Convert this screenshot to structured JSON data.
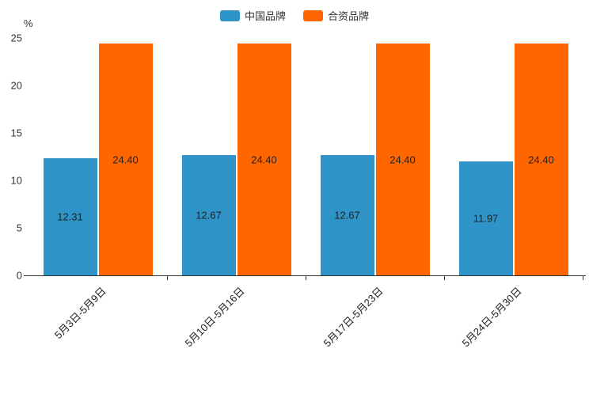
{
  "chart_data": {
    "type": "bar",
    "title": "",
    "categories": [
      "5月3日-5月9日",
      "5月10日-5月16日",
      "5月17日-5月23日",
      "5月24日-5月30日"
    ],
    "series": [
      {
        "name": "中国品牌",
        "color": "#2E94C8",
        "values": [
          12.31,
          12.67,
          12.67,
          11.97
        ],
        "labels": [
          "12.31",
          "12.67",
          "12.67",
          "11.97"
        ]
      },
      {
        "name": "合资品牌",
        "color": "#FF6600",
        "values": [
          24.4,
          24.4,
          24.4,
          24.4
        ],
        "labels": [
          "24.40",
          "24.40",
          "24.40",
          "24.40"
        ]
      }
    ],
    "ylabel_unit": "%",
    "ylim": [
      0,
      25
    ],
    "yticks": [
      0,
      5,
      10,
      15,
      20,
      25
    ],
    "legend_position": "top-center",
    "grid": false,
    "axis_color": "#333333",
    "label_color": "#222222"
  }
}
